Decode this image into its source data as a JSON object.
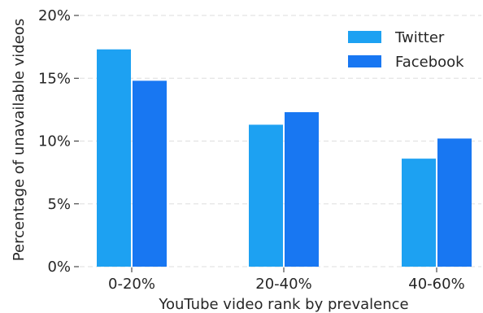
{
  "chart_data": {
    "type": "bar",
    "title": "",
    "xlabel": "YouTube video rank by prevalence",
    "ylabel": "Percentage of unavailable videos",
    "categories": [
      "0-20%",
      "20-40%",
      "40-60%"
    ],
    "series": [
      {
        "name": "Twitter",
        "values": [
          17.3,
          11.3,
          8.6
        ],
        "color": "#1DA1F2"
      },
      {
        "name": "Facebook",
        "values": [
          14.8,
          12.3,
          10.2
        ],
        "color": "#1877F2"
      }
    ],
    "ylim": [
      0,
      20
    ],
    "yticks": [
      0,
      5,
      10,
      15,
      20
    ],
    "ytick_labels": [
      "0%",
      "5%",
      "10%",
      "15%",
      "20%"
    ],
    "grid": true,
    "legend_position": "top-right"
  }
}
